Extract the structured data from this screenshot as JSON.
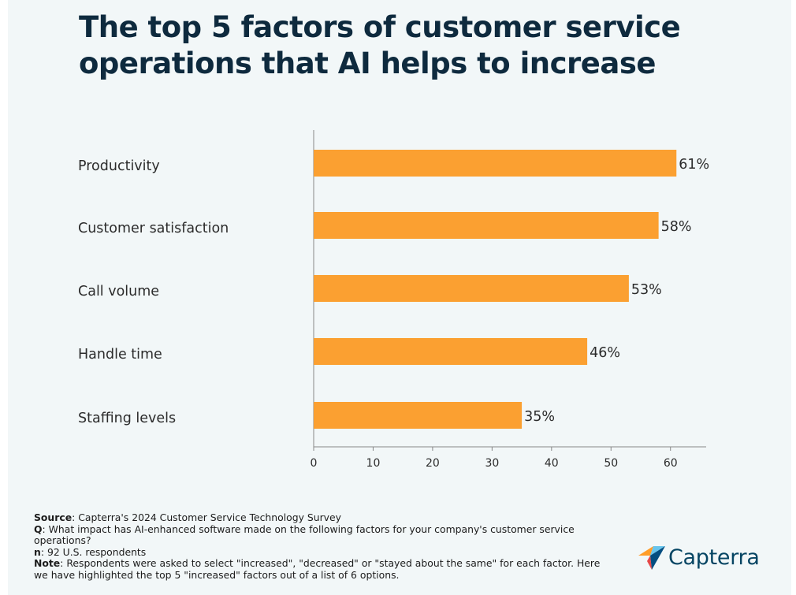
{
  "title": {
    "line1": "The top 5 factors of customer service",
    "line2": "operations that AI helps to increase"
  },
  "chart_data": {
    "type": "bar",
    "orientation": "horizontal",
    "title": "The top 5 factors of customer service operations that AI helps to increase",
    "categories": [
      "Productivity",
      "Customer satisfaction",
      "Call volume",
      "Handle time",
      "Staffing levels"
    ],
    "values": [
      61,
      58,
      53,
      46,
      35
    ],
    "value_labels": [
      "61%",
      "58%",
      "53%",
      "46%",
      "35%"
    ],
    "xlim": [
      0,
      66
    ],
    "xticks": [
      0,
      10,
      20,
      30,
      40,
      50,
      60
    ],
    "xlabel": "",
    "ylabel": "",
    "grid": false,
    "colors": {
      "bar": "#fba031",
      "axis": "#888888",
      "text": "#2b2b2b"
    }
  },
  "footnotes": {
    "source_label": "Source",
    "source_text": ": Capterra's 2024 Customer Service Technology Survey",
    "q_label": "Q",
    "q_text": ": What impact has AI-enhanced software made on the following factors for your company's customer service operations?",
    "n_label": "n",
    "n_text": ": 92 U.S. respondents",
    "note_label": "Note",
    "note_text": ": Respondents were asked to select \"increased\", \"decreased\" or \"stayed about the same\" for each factor. Here we have highlighted the top 5 \"increased\" factors out of a list of 6 options."
  },
  "logo": {
    "text": "Capterra",
    "icon": "capterra-arrow-icon",
    "colors": [
      "#ff9d28",
      "#68c5ed",
      "#044d80",
      "#e54747"
    ]
  }
}
